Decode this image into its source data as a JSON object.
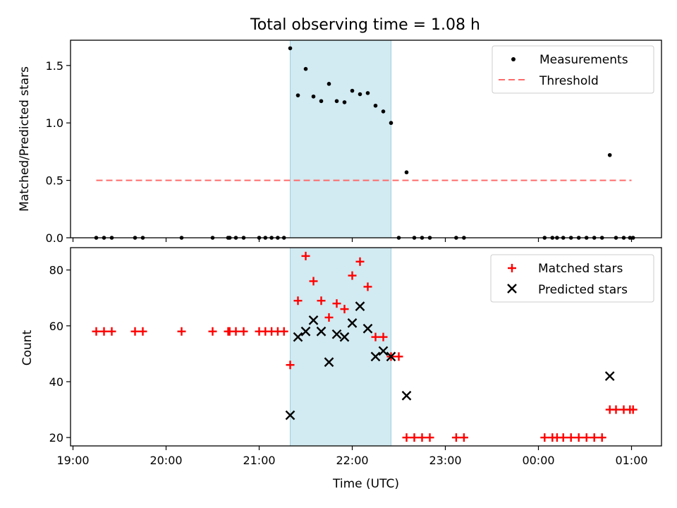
{
  "title": "Total observing time = 1.08 h",
  "colors": {
    "band": "#add8e6",
    "threshold": "#ff6b6b",
    "matched": "#ff0000",
    "predicted": "#000000",
    "measurement": "#000000"
  },
  "chart_data": [
    {
      "type": "scatter",
      "panel": "top",
      "ylabel": "Matched/Predicted stars",
      "ylim": [
        0,
        1.72
      ],
      "yticks": [
        0.0,
        0.5,
        1.0,
        1.5
      ],
      "ytick_labels": [
        "0.0",
        "0.5",
        "1.0",
        "1.5"
      ],
      "grid": false,
      "legend_position": "upper right",
      "observing_window": [
        "21:20",
        "22:25"
      ],
      "series": [
        {
          "name": "Measurements",
          "marker": "dot",
          "points": [
            [
              "19:15",
              0
            ],
            [
              "19:20",
              0
            ],
            [
              "19:25",
              0
            ],
            [
              "19:40",
              0
            ],
            [
              "19:45",
              0
            ],
            [
              "20:10",
              0
            ],
            [
              "20:30",
              0
            ],
            [
              "20:40",
              0
            ],
            [
              "20:41",
              0
            ],
            [
              "20:45",
              0
            ],
            [
              "20:50",
              0
            ],
            [
              "21:00",
              0
            ],
            [
              "21:04",
              0
            ],
            [
              "21:08",
              0
            ],
            [
              "21:12",
              0
            ],
            [
              "21:16",
              0
            ],
            [
              "21:20",
              1.65
            ],
            [
              "21:25",
              1.24
            ],
            [
              "21:30",
              1.47
            ],
            [
              "21:35",
              1.23
            ],
            [
              "21:40",
              1.19
            ],
            [
              "21:45",
              1.34
            ],
            [
              "21:50",
              1.19
            ],
            [
              "21:55",
              1.18
            ],
            [
              "22:00",
              1.28
            ],
            [
              "22:05",
              1.25
            ],
            [
              "22:10",
              1.26
            ],
            [
              "22:15",
              1.15
            ],
            [
              "22:20",
              1.1
            ],
            [
              "22:25",
              1.0
            ],
            [
              "22:35",
              0.57
            ],
            [
              "22:30",
              0
            ],
            [
              "22:40",
              0
            ],
            [
              "22:45",
              0
            ],
            [
              "22:50",
              0
            ],
            [
              "23:07",
              0
            ],
            [
              "23:12",
              0
            ],
            [
              "00:04",
              0
            ],
            [
              "00:09",
              0
            ],
            [
              "00:12",
              0
            ],
            [
              "00:16",
              0
            ],
            [
              "00:21",
              0
            ],
            [
              "00:26",
              0
            ],
            [
              "00:31",
              0
            ],
            [
              "00:36",
              0
            ],
            [
              "00:41",
              0
            ],
            [
              "00:46",
              0.72
            ],
            [
              "00:50",
              0
            ],
            [
              "00:55",
              0
            ],
            [
              "00:59",
              0
            ],
            [
              "01:01",
              0
            ]
          ]
        },
        {
          "name": "Threshold",
          "marker": "dashed-line",
          "points": [
            [
              "19:15",
              0.5
            ],
            [
              "01:00",
              0.5
            ]
          ]
        }
      ]
    },
    {
      "type": "scatter",
      "panel": "bottom",
      "xlabel": "Time (UTC)",
      "ylabel": "Count",
      "ylim": [
        17,
        88
      ],
      "yticks": [
        20,
        40,
        60,
        80
      ],
      "ytick_labels": [
        "20",
        "40",
        "60",
        "80"
      ],
      "xtick_labels": [
        "19:00",
        "20:00",
        "21:00",
        "22:00",
        "23:00",
        "00:00",
        "01:00"
      ],
      "grid": false,
      "legend_position": "upper right",
      "observing_window": [
        "21:20",
        "22:25"
      ],
      "series": [
        {
          "name": "Matched stars",
          "marker": "plus",
          "points": [
            [
              "19:15",
              58
            ],
            [
              "19:20",
              58
            ],
            [
              "19:25",
              58
            ],
            [
              "19:40",
              58
            ],
            [
              "19:45",
              58
            ],
            [
              "20:10",
              58
            ],
            [
              "20:30",
              58
            ],
            [
              "20:40",
              58
            ],
            [
              "20:41",
              58
            ],
            [
              "20:45",
              58
            ],
            [
              "20:50",
              58
            ],
            [
              "21:00",
              58
            ],
            [
              "21:04",
              58
            ],
            [
              "21:08",
              58
            ],
            [
              "21:12",
              58
            ],
            [
              "21:16",
              58
            ],
            [
              "21:20",
              46
            ],
            [
              "21:25",
              69
            ],
            [
              "21:30",
              85
            ],
            [
              "21:35",
              76
            ],
            [
              "21:40",
              69
            ],
            [
              "21:45",
              63
            ],
            [
              "21:50",
              68
            ],
            [
              "21:55",
              66
            ],
            [
              "22:00",
              78
            ],
            [
              "22:05",
              83
            ],
            [
              "22:10",
              74
            ],
            [
              "22:15",
              56
            ],
            [
              "22:20",
              56
            ],
            [
              "22:25",
              49
            ],
            [
              "22:30",
              49
            ],
            [
              "22:35",
              20
            ],
            [
              "22:40",
              20
            ],
            [
              "22:45",
              20
            ],
            [
              "22:50",
              20
            ],
            [
              "23:07",
              20
            ],
            [
              "23:12",
              20
            ],
            [
              "00:04",
              20
            ],
            [
              "00:09",
              20
            ],
            [
              "00:12",
              20
            ],
            [
              "00:16",
              20
            ],
            [
              "00:21",
              20
            ],
            [
              "00:26",
              20
            ],
            [
              "00:31",
              20
            ],
            [
              "00:36",
              20
            ],
            [
              "00:41",
              20
            ],
            [
              "00:46",
              30
            ],
            [
              "00:50",
              30
            ],
            [
              "00:55",
              30
            ],
            [
              "00:59",
              30
            ],
            [
              "01:01",
              30
            ]
          ]
        },
        {
          "name": "Predicted stars",
          "marker": "x",
          "points": [
            [
              "21:20",
              28
            ],
            [
              "21:25",
              56
            ],
            [
              "21:30",
              58
            ],
            [
              "21:35",
              62
            ],
            [
              "21:40",
              58
            ],
            [
              "21:45",
              47
            ],
            [
              "21:50",
              57
            ],
            [
              "21:55",
              56
            ],
            [
              "22:00",
              61
            ],
            [
              "22:05",
              67
            ],
            [
              "22:10",
              59
            ],
            [
              "22:15",
              49
            ],
            [
              "22:20",
              51
            ],
            [
              "22:25",
              49
            ],
            [
              "22:35",
              35
            ],
            [
              "00:46",
              42
            ]
          ]
        }
      ]
    }
  ]
}
